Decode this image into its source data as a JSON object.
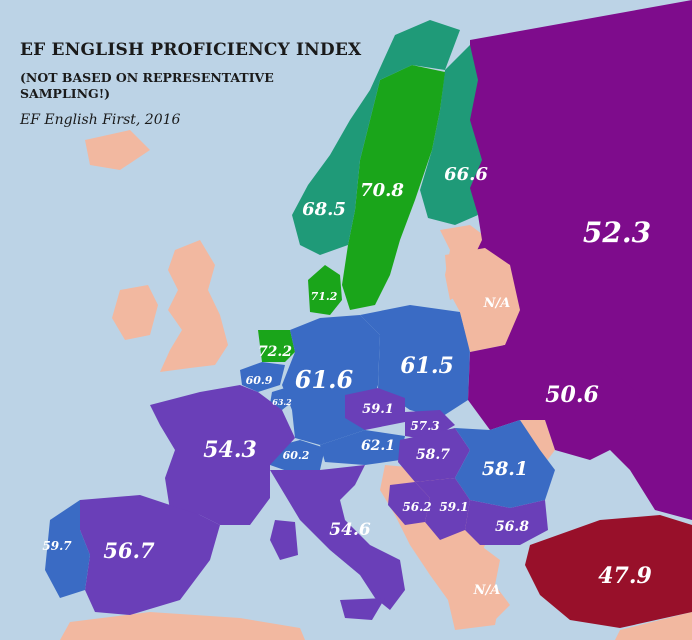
{
  "title": "EF ENGLISH PROFICIENCY INDEX",
  "subtitle": "(NOT BASED ON REPRESENTATIVE SAMPLING!)",
  "source": "EF English First, 2016",
  "colors": {
    "sea": "#bcd3e6",
    "na_land": "#f2b8a0",
    "very_high_green": "#1aa51a",
    "high_teal": "#1f9a78",
    "high_blue": "#3a6bc4",
    "moderate_purple": "#6a3fb8",
    "low_magenta": "#7e0c8c",
    "very_low_red": "#98102a"
  },
  "countries": {
    "russia": "52.3",
    "finland": "66.6",
    "sweden": "70.8",
    "norway": "68.5",
    "denmark": "71.2",
    "netherlands": "72.2",
    "belgium": "60.9",
    "luxembourg": "63.2",
    "germany": "61.6",
    "poland": "61.5",
    "belarus": "N/A",
    "ukraine": "50.6",
    "czech_republic": "59.1",
    "slovakia": "57.3",
    "austria": "62.1",
    "switzerland": "60.2",
    "hungary": "58.7",
    "romania": "58.1",
    "croatia": "56.2",
    "serbia": "59.1",
    "bulgaria": "56.8",
    "turkey": "47.9",
    "france": "54.3",
    "italy": "54.6",
    "spain": "56.7",
    "portugal": "59.7",
    "greece": "N/A"
  }
}
